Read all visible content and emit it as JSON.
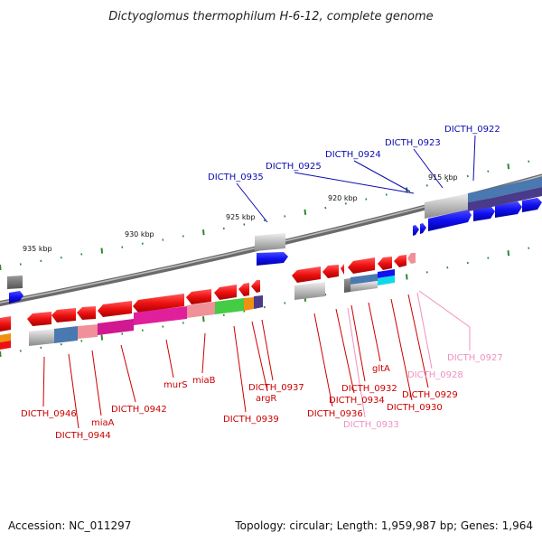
{
  "title": "Dictyoglomus thermophilum H-6-12, complete genome",
  "footer": {
    "accession": "Accession: NC_011297",
    "summary": "Topology: circular; Length: 1,959,987 bp; Genes: 1,964"
  },
  "scale_labels": [
    "935 kbp",
    "930 kbp",
    "925 kbp",
    "920 kbp",
    "915 kbp"
  ],
  "gene_labels": {
    "blue": [
      "DICTH_0935",
      "DICTH_0925",
      "DICTH_0924",
      "DICTH_0923",
      "DICTH_0922"
    ],
    "red": [
      "DICTH_0946",
      "DICTH_0944",
      "miaA",
      "DICTH_0942",
      "murS",
      "miaB",
      "DICTH_0939",
      "argR",
      "DICTH_0937",
      "DICTH_0936",
      "DICTH_0934",
      "DICTH_0932",
      "gltA",
      "DICTH_0930",
      "DICTH_0929"
    ],
    "pink": [
      "DICTH_0933",
      "DICTH_0928",
      "DICTH_0927"
    ]
  },
  "colors": {
    "forward_gene": "#1010f0",
    "reverse_gene": "#ee1111",
    "backbone": "#8a8a8a",
    "tick": "#2a8a2a",
    "cog_blue": "#4a78b0",
    "cog_magenta": "#e0209a",
    "cog_pink": "#f09098",
    "cog_green": "#44cc44",
    "cog_orange": "#f09010",
    "cog_purple": "#4a3a8a",
    "cog_gray": "#b8b8b8",
    "cog_cyan": "#10d8e8"
  }
}
